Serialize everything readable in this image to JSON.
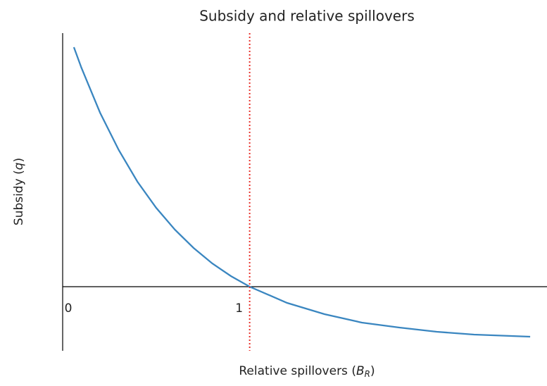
{
  "chart_data": {
    "type": "line",
    "title": "Subsidy and relative spillovers",
    "xlabel": [
      "Relative spillovers (",
      "B",
      "R",
      ")"
    ],
    "ylabel": [
      "Subsidy (",
      "q",
      ")"
    ],
    "x": [
      0.06,
      0.1,
      0.2,
      0.3,
      0.4,
      0.5,
      0.6,
      0.7,
      0.8,
      0.9,
      1.0,
      1.2,
      1.4,
      1.6,
      1.8,
      2.0,
      2.2,
      2.5
    ],
    "series": [
      {
        "color": "#3a86c0",
        "values": [
          3.4,
          3.11,
          2.47,
          1.94,
          1.49,
          1.12,
          0.81,
          0.55,
          0.33,
          0.15,
          0.0,
          -0.23,
          -0.39,
          -0.51,
          -0.58,
          -0.64,
          -0.68,
          -0.71
        ]
      }
    ],
    "xlim": [
      0,
      2.59
    ],
    "ylim": [
      -0.91,
      3.6
    ],
    "xticks": [
      0,
      1
    ],
    "hline": {
      "value": 0,
      "color": "#000000"
    },
    "vline": {
      "value": 1,
      "color": "#e8302a",
      "style": "dotted"
    }
  }
}
